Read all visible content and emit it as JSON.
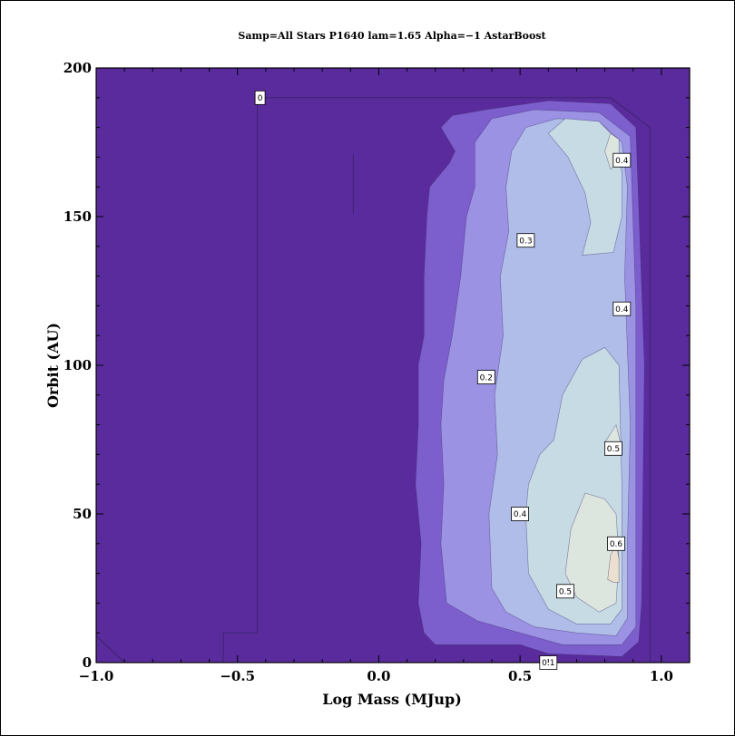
{
  "chart_data": {
    "type": "contour",
    "title": "Samp=All Stars P1640 lam=1.65 Alpha=−1 AstarBoost",
    "xlabel": "Log Mass (MJup)",
    "ylabel": "Orbit (AU)",
    "xlim": [
      -1.0,
      1.1
    ],
    "ylim": [
      0,
      200
    ],
    "x_ticks": [
      -1.0,
      -0.5,
      0.0,
      0.5,
      1.0
    ],
    "x_tick_labels": [
      "−1.0",
      "−0.5",
      "0.0",
      "0.5",
      "1.0"
    ],
    "y_ticks": [
      0,
      50,
      100,
      150,
      200
    ],
    "y_tick_labels": [
      "0",
      "50",
      "100",
      "150",
      "200"
    ],
    "grid": false,
    "legend": "none",
    "colors": {
      "level_0": "#5a2b9c",
      "level_0_1": "#7c5fcc",
      "level_0_2": "#9b92e4",
      "level_0_3": "#b0bde8",
      "level_0_4": "#c7dbe4",
      "level_0_5": "#dde5df",
      "level_0_6": "#ebe0cf"
    },
    "contour_labels": [
      {
        "text": "0",
        "x": -0.42,
        "y": 190
      },
      {
        "text": "0.4",
        "x": 0.86,
        "y": 169
      },
      {
        "text": "0.3",
        "x": 0.52,
        "y": 142
      },
      {
        "text": "0.4",
        "x": 0.86,
        "y": 119
      },
      {
        "text": "0.2",
        "x": 0.38,
        "y": 96
      },
      {
        "text": "0.5",
        "x": 0.83,
        "y": 72
      },
      {
        "text": "0.4",
        "x": 0.5,
        "y": 50
      },
      {
        "text": "0.6",
        "x": 0.84,
        "y": 40
      },
      {
        "text": "0.5",
        "x": 0.66,
        "y": 24
      },
      {
        "text": "0.1",
        "x": 0.6,
        "y": 0
      }
    ],
    "regions": [
      {
        "level": "level_0_1",
        "points": [
          [
            0.16,
            10
          ],
          [
            0.14,
            20
          ],
          [
            0.15,
            40
          ],
          [
            0.13,
            60
          ],
          [
            0.14,
            80
          ],
          [
            0.14,
            100
          ],
          [
            0.16,
            110
          ],
          [
            0.16,
            130
          ],
          [
            0.17,
            150
          ],
          [
            0.18,
            160
          ],
          [
            0.25,
            168
          ],
          [
            0.27,
            172
          ],
          [
            0.22,
            180
          ],
          [
            0.26,
            184
          ],
          [
            0.38,
            186
          ],
          [
            0.6,
            189
          ],
          [
            0.82,
            188
          ],
          [
            0.91,
            180
          ],
          [
            0.94,
            100
          ],
          [
            0.93,
            20
          ],
          [
            0.92,
            7
          ],
          [
            0.86,
            2
          ],
          [
            0.6,
            3
          ],
          [
            0.5,
            6
          ],
          [
            0.3,
            6
          ],
          [
            0.2,
            6
          ]
        ]
      },
      {
        "level": "level_0_2",
        "points": [
          [
            0.24,
            20
          ],
          [
            0.22,
            40
          ],
          [
            0.23,
            60
          ],
          [
            0.22,
            80
          ],
          [
            0.23,
            95
          ],
          [
            0.26,
            110
          ],
          [
            0.29,
            130
          ],
          [
            0.31,
            150
          ],
          [
            0.34,
            160
          ],
          [
            0.34,
            175
          ],
          [
            0.4,
            183
          ],
          [
            0.55,
            186
          ],
          [
            0.78,
            185
          ],
          [
            0.89,
            177
          ],
          [
            0.91,
            120
          ],
          [
            0.91,
            40
          ],
          [
            0.91,
            12
          ],
          [
            0.86,
            6
          ],
          [
            0.65,
            6
          ],
          [
            0.5,
            10
          ],
          [
            0.35,
            14
          ]
        ]
      },
      {
        "level": "level_0_3",
        "points": [
          [
            0.4,
            25
          ],
          [
            0.39,
            50
          ],
          [
            0.42,
            70
          ],
          [
            0.41,
            90
          ],
          [
            0.44,
            110
          ],
          [
            0.43,
            130
          ],
          [
            0.46,
            145
          ],
          [
            0.45,
            160
          ],
          [
            0.47,
            172
          ],
          [
            0.52,
            180
          ],
          [
            0.63,
            183
          ],
          [
            0.78,
            182
          ],
          [
            0.86,
            175
          ],
          [
            0.88,
            160
          ],
          [
            0.87,
            130
          ],
          [
            0.89,
            80
          ],
          [
            0.88,
            40
          ],
          [
            0.88,
            15
          ],
          [
            0.84,
            9
          ],
          [
            0.7,
            10
          ],
          [
            0.55,
            12
          ],
          [
            0.45,
            17
          ]
        ]
      },
      {
        "level": "level_0_4",
        "points": [
          [
            0.53,
            30
          ],
          [
            0.52,
            50
          ],
          [
            0.53,
            60
          ],
          [
            0.57,
            70
          ],
          [
            0.62,
            75
          ],
          [
            0.65,
            90
          ],
          [
            0.72,
            102
          ],
          [
            0.8,
            106
          ],
          [
            0.85,
            100
          ],
          [
            0.86,
            60
          ],
          [
            0.86,
            30
          ],
          [
            0.86,
            18
          ],
          [
            0.82,
            13
          ],
          [
            0.7,
            13
          ],
          [
            0.6,
            18
          ]
        ]
      },
      {
        "level": "level_0_4",
        "points": [
          [
            0.72,
            137
          ],
          [
            0.75,
            148
          ],
          [
            0.73,
            158
          ],
          [
            0.67,
            170
          ],
          [
            0.6,
            178
          ],
          [
            0.66,
            183
          ],
          [
            0.78,
            182
          ],
          [
            0.84,
            176
          ],
          [
            0.86,
            165
          ],
          [
            0.86,
            150
          ],
          [
            0.83,
            138
          ]
        ]
      },
      {
        "level": "level_0_5",
        "points": [
          [
            0.66,
            30
          ],
          [
            0.68,
            45
          ],
          [
            0.73,
            57
          ],
          [
            0.8,
            55
          ],
          [
            0.84,
            50
          ],
          [
            0.85,
            35
          ],
          [
            0.84,
            20
          ],
          [
            0.78,
            17
          ],
          [
            0.7,
            22
          ]
        ]
      },
      {
        "level": "level_0_5",
        "points": [
          [
            0.8,
            74
          ],
          [
            0.83,
            70
          ],
          [
            0.86,
            72
          ],
          [
            0.84,
            80
          ],
          [
            0.82,
            77
          ]
        ]
      },
      {
        "level": "level_0_5",
        "points": [
          [
            0.8,
            172
          ],
          [
            0.82,
            178
          ],
          [
            0.85,
            176
          ],
          [
            0.85,
            168
          ],
          [
            0.82,
            166
          ]
        ]
      },
      {
        "level": "level_0_6",
        "points": [
          [
            0.81,
            28
          ],
          [
            0.82,
            36
          ],
          [
            0.84,
            40
          ],
          [
            0.85,
            35
          ],
          [
            0.85,
            27
          ],
          [
            0.83,
            27
          ]
        ]
      }
    ],
    "contour_lines": [
      {
        "level": "0",
        "points": [
          [
            -0.9,
            0
          ],
          [
            -1.0,
            9
          ]
        ]
      },
      {
        "level": "0",
        "points": [
          [
            -0.55,
            0
          ],
          [
            -0.55,
            10
          ],
          [
            -0.43,
            10
          ],
          [
            -0.43,
            190
          ],
          [
            0.82,
            190
          ],
          [
            0.96,
            180
          ],
          [
            0.96,
            0
          ]
        ]
      },
      {
        "level": "0",
        "points": [
          [
            -0.09,
            171
          ],
          [
            -0.09,
            151
          ]
        ]
      }
    ]
  }
}
